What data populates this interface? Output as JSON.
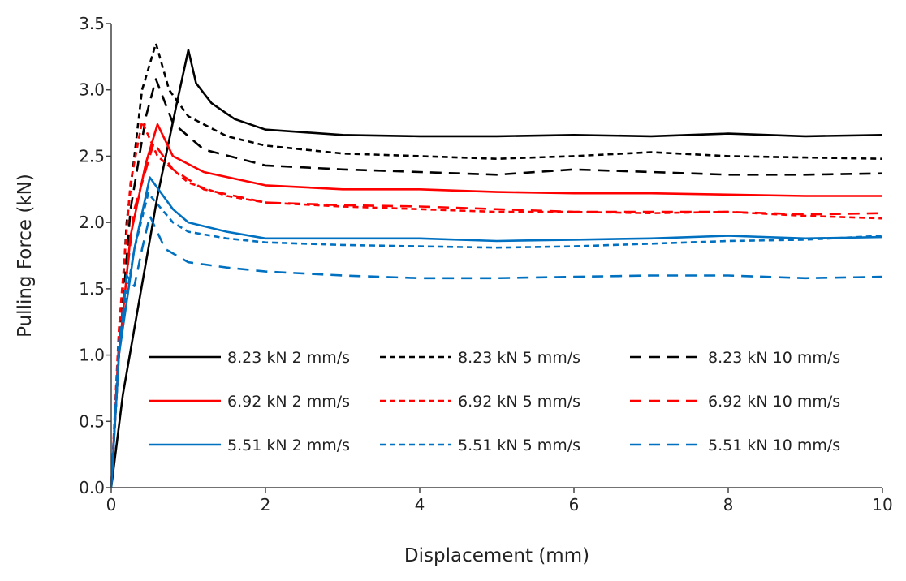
{
  "chart_data": {
    "type": "line",
    "title": "",
    "xlabel": "Displacement (mm)",
    "ylabel": "Pulling Force (kN)",
    "xlim": [
      0,
      10
    ],
    "ylim": [
      0,
      3.5
    ],
    "xticks": [
      "0",
      "2",
      "4",
      "6",
      "8",
      "10"
    ],
    "yticks": [
      "0.0",
      "0.5",
      "1.0",
      "1.5",
      "2.0",
      "2.5",
      "3.0",
      "3.5"
    ],
    "grid": false,
    "legend_position": "lower-center inside plot, 3 columns",
    "series": [
      {
        "name": "8.23 kN 2 mm/s",
        "color": "#000000",
        "dash": "solid",
        "points": [
          [
            0,
            0
          ],
          [
            0.15,
            0.7
          ],
          [
            0.3,
            1.2
          ],
          [
            0.6,
            2.2
          ],
          [
            0.85,
            2.9
          ],
          [
            1.0,
            3.3
          ],
          [
            1.1,
            3.05
          ],
          [
            1.3,
            2.9
          ],
          [
            1.6,
            2.78
          ],
          [
            2,
            2.7
          ],
          [
            3,
            2.66
          ],
          [
            4,
            2.65
          ],
          [
            5,
            2.65
          ],
          [
            6,
            2.66
          ],
          [
            7,
            2.65
          ],
          [
            8,
            2.67
          ],
          [
            9,
            2.65
          ],
          [
            10,
            2.66
          ]
        ]
      },
      {
        "name": "8.23 kN 5 mm/s",
        "color": "#000000",
        "dash": "short",
        "points": [
          [
            0,
            0
          ],
          [
            0.1,
            1.0
          ],
          [
            0.2,
            2.0
          ],
          [
            0.4,
            3.0
          ],
          [
            0.58,
            3.35
          ],
          [
            0.75,
            3.0
          ],
          [
            1,
            2.8
          ],
          [
            1.5,
            2.65
          ],
          [
            2,
            2.58
          ],
          [
            3,
            2.52
          ],
          [
            4,
            2.5
          ],
          [
            5,
            2.48
          ],
          [
            6,
            2.5
          ],
          [
            7,
            2.53
          ],
          [
            8,
            2.5
          ],
          [
            9,
            2.49
          ],
          [
            10,
            2.48
          ]
        ]
      },
      {
        "name": "8.23 kN 10 mm/s",
        "color": "#000000",
        "dash": "long",
        "points": [
          [
            0,
            0
          ],
          [
            0.1,
            1.0
          ],
          [
            0.25,
            2.1
          ],
          [
            0.45,
            2.8
          ],
          [
            0.58,
            3.08
          ],
          [
            0.8,
            2.75
          ],
          [
            1.2,
            2.55
          ],
          [
            2,
            2.43
          ],
          [
            3,
            2.4
          ],
          [
            4,
            2.38
          ],
          [
            5,
            2.36
          ],
          [
            6,
            2.4
          ],
          [
            7,
            2.38
          ],
          [
            8,
            2.36
          ],
          [
            9,
            2.36
          ],
          [
            10,
            2.37
          ]
        ]
      },
      {
        "name": "6.92 kN 2 mm/s",
        "color": "#ff0000",
        "dash": "solid",
        "points": [
          [
            0,
            0
          ],
          [
            0.1,
            1.0
          ],
          [
            0.25,
            1.9
          ],
          [
            0.45,
            2.45
          ],
          [
            0.6,
            2.74
          ],
          [
            0.8,
            2.5
          ],
          [
            1.2,
            2.38
          ],
          [
            2,
            2.28
          ],
          [
            3,
            2.25
          ],
          [
            4,
            2.25
          ],
          [
            5,
            2.23
          ],
          [
            6,
            2.22
          ],
          [
            7,
            2.22
          ],
          [
            8,
            2.21
          ],
          [
            9,
            2.2
          ],
          [
            10,
            2.2
          ]
        ]
      },
      {
        "name": "6.92 kN 5 mm/s",
        "color": "#ff0000",
        "dash": "short",
        "points": [
          [
            0,
            0
          ],
          [
            0.1,
            1.2
          ],
          [
            0.25,
            2.3
          ],
          [
            0.4,
            2.76
          ],
          [
            0.6,
            2.5
          ],
          [
            1,
            2.3
          ],
          [
            1.5,
            2.2
          ],
          [
            2,
            2.15
          ],
          [
            3,
            2.12
          ],
          [
            4,
            2.1
          ],
          [
            5,
            2.08
          ],
          [
            6,
            2.08
          ],
          [
            7,
            2.07
          ],
          [
            8,
            2.08
          ],
          [
            9,
            2.05
          ],
          [
            10,
            2.03
          ]
        ]
      },
      {
        "name": "6.92 kN 10 mm/s",
        "color": "#ff0000",
        "dash": "long",
        "points": [
          [
            0,
            0
          ],
          [
            0.1,
            1.1
          ],
          [
            0.3,
            2.1
          ],
          [
            0.55,
            2.6
          ],
          [
            0.8,
            2.4
          ],
          [
            1.2,
            2.25
          ],
          [
            2,
            2.15
          ],
          [
            3,
            2.13
          ],
          [
            4,
            2.12
          ],
          [
            5,
            2.1
          ],
          [
            6,
            2.08
          ],
          [
            7,
            2.08
          ],
          [
            8,
            2.08
          ],
          [
            9,
            2.06
          ],
          [
            10,
            2.07
          ]
        ]
      },
      {
        "name": "5.51 kN 2 mm/s",
        "color": "#0070c0",
        "dash": "solid",
        "points": [
          [
            0,
            0
          ],
          [
            0.1,
            1.0
          ],
          [
            0.3,
            1.8
          ],
          [
            0.5,
            2.34
          ],
          [
            0.8,
            2.1
          ],
          [
            1,
            2.0
          ],
          [
            1.5,
            1.93
          ],
          [
            2,
            1.88
          ],
          [
            3,
            1.88
          ],
          [
            4,
            1.88
          ],
          [
            5,
            1.86
          ],
          [
            6,
            1.87
          ],
          [
            7,
            1.88
          ],
          [
            8,
            1.9
          ],
          [
            9,
            1.88
          ],
          [
            10,
            1.89
          ]
        ]
      },
      {
        "name": "5.51 kN 5 mm/s",
        "color": "#0070c0",
        "dash": "short",
        "points": [
          [
            0,
            0
          ],
          [
            0.1,
            1.1
          ],
          [
            0.3,
            1.8
          ],
          [
            0.48,
            2.22
          ],
          [
            0.8,
            2.0
          ],
          [
            1,
            1.93
          ],
          [
            1.5,
            1.88
          ],
          [
            2,
            1.85
          ],
          [
            3,
            1.83
          ],
          [
            4,
            1.82
          ],
          [
            5,
            1.81
          ],
          [
            6,
            1.82
          ],
          [
            7,
            1.84
          ],
          [
            8,
            1.86
          ],
          [
            9,
            1.87
          ],
          [
            10,
            1.9
          ]
        ]
      },
      {
        "name": "5.51 kN 10 mm/s",
        "color": "#0070c0",
        "dash": "long",
        "points": [
          [
            0,
            0
          ],
          [
            0.1,
            1.0
          ],
          [
            0.2,
            1.6
          ],
          [
            0.3,
            1.52
          ],
          [
            0.4,
            1.8
          ],
          [
            0.5,
            2.05
          ],
          [
            0.7,
            1.8
          ],
          [
            1,
            1.7
          ],
          [
            1.5,
            1.66
          ],
          [
            2,
            1.63
          ],
          [
            3,
            1.6
          ],
          [
            4,
            1.58
          ],
          [
            5,
            1.58
          ],
          [
            6,
            1.59
          ],
          [
            7,
            1.6
          ],
          [
            8,
            1.6
          ],
          [
            9,
            1.58
          ],
          [
            10,
            1.59
          ]
        ]
      }
    ]
  }
}
